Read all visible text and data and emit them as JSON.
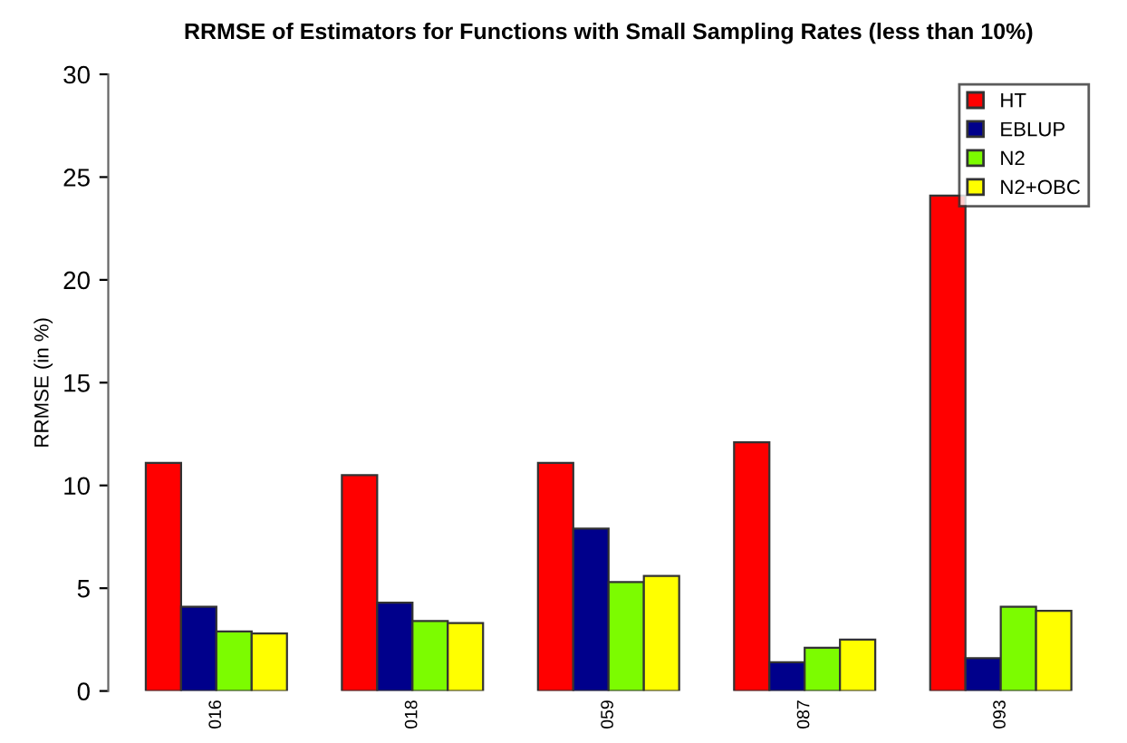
{
  "chart_data": {
    "type": "bar",
    "title": "RRMSE of Estimators for Functions with Small Sampling Rates (less than 10%)",
    "ylabel": "RRMSE (in %)",
    "categories": [
      "016",
      "018",
      "059",
      "087",
      "093"
    ],
    "series": [
      {
        "name": "HT",
        "color": "#ff0000",
        "values": [
          11.1,
          10.5,
          11.1,
          12.1,
          24.1
        ]
      },
      {
        "name": "EBLUP",
        "color": "#00008b",
        "values": [
          4.1,
          4.3,
          7.9,
          1.4,
          1.6
        ]
      },
      {
        "name": "N2",
        "color": "#7cfc00",
        "values": [
          2.9,
          3.4,
          5.3,
          2.1,
          4.1
        ]
      },
      {
        "name": "N2+OBC",
        "color": "#ffff00",
        "values": [
          2.8,
          3.3,
          5.6,
          2.5,
          3.9
        ]
      }
    ],
    "ylim": [
      0,
      30
    ],
    "yticks": [
      0,
      5,
      10,
      15,
      20,
      25,
      30
    ],
    "legend": "top right",
    "grid": false
  }
}
